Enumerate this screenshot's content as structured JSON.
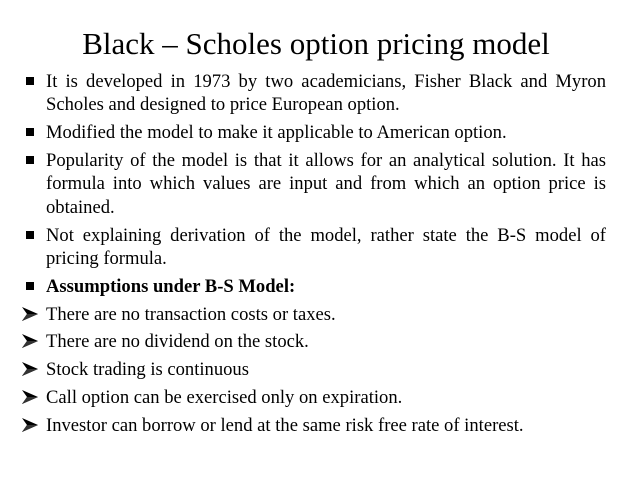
{
  "slide": {
    "title": "Black – Scholes option pricing model",
    "items": [
      {
        "marker": "square-bullet-icon",
        "text": "It is developed in 1973 by two academicians, Fisher Black and Myron Scholes and designed to price European option.",
        "bold": false
      },
      {
        "marker": "square-bullet-icon",
        "text": "Modified the model to make it applicable to American option.",
        "bold": false
      },
      {
        "marker": "square-bullet-icon",
        "text": "Popularity of the model is that it allows for an analytical solution. It has formula into which values are input and from which an option price is obtained.",
        "bold": false
      },
      {
        "marker": "square-bullet-icon",
        "text": "Not explaining derivation of the model, rather state the B-S model of pricing formula.",
        "bold": false
      },
      {
        "marker": "square-bullet-icon",
        "text": "Assumptions under B-S Model:",
        "bold": true
      },
      {
        "marker": "arrow-bullet-icon",
        "text": "There are no transaction costs or taxes.",
        "bold": false
      },
      {
        "marker": "arrow-bullet-icon",
        "text": "There are no dividend on the stock.",
        "bold": false
      },
      {
        "marker": "arrow-bullet-icon",
        "text": "Stock trading is continuous",
        "bold": false
      },
      {
        "marker": "arrow-bullet-icon",
        "text": "Call option can be exercised only on expiration.",
        "bold": false
      },
      {
        "marker": "arrow-bullet-icon",
        "text": "Investor can borrow or lend at the same risk free rate of interest.",
        "bold": false
      }
    ]
  }
}
